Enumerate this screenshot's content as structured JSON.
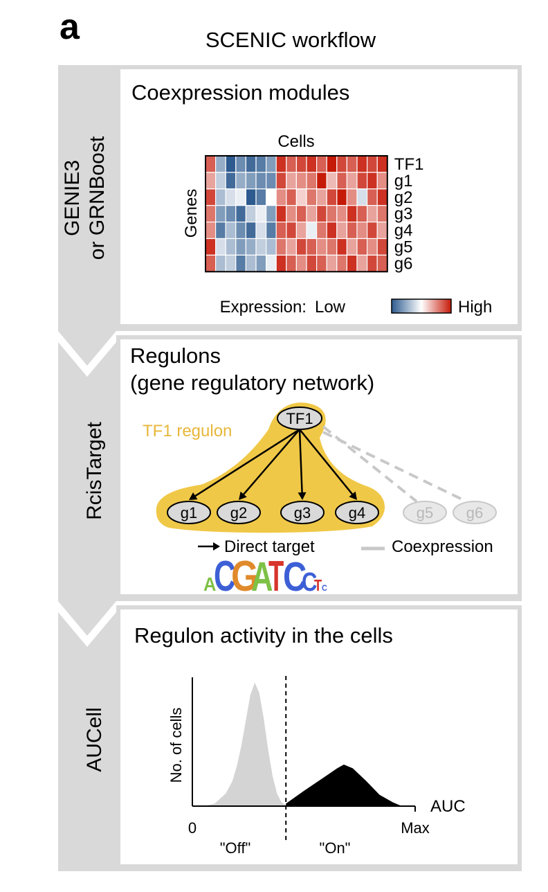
{
  "panel_label": "a",
  "title": "SCENIC workflow",
  "colors": {
    "side_gray": "#d9d9d9",
    "regulon_yellow": "#f0c847",
    "regulon_label": "#e8b73a",
    "off_gray": "#d4d4d4",
    "on_black": "#000000",
    "low_blue": "#2d5b8f",
    "high_red": "#c61a09"
  },
  "sections": [
    {
      "tool_line1": "GENIE3",
      "tool_line2": "or GRNBoost",
      "heading": "Coexpression modules"
    },
    {
      "tool": "RcisTarget",
      "heading_line1": "Regulons",
      "heading_line2": "(gene regulatory network)"
    },
    {
      "tool": "AUCell",
      "heading": "Regulon activity in the cells"
    }
  ],
  "heatmap": {
    "cells_label": "Cells",
    "genes_label": "Genes",
    "rows": [
      "TF1",
      "g1",
      "g2",
      "g3",
      "g4",
      "g5",
      "g6"
    ],
    "legend_label": "Expression:",
    "legend_low": "Low",
    "legend_high": "High",
    "matrix": [
      [
        0.85,
        0.25,
        0.0,
        0.15,
        0.05,
        0.1,
        0.2,
        0.95,
        0.85,
        0.9,
        0.95,
        0.85,
        1.0,
        0.9,
        0.85,
        0.95,
        0.9,
        0.95
      ],
      [
        0.7,
        0.35,
        0.05,
        0.25,
        0.2,
        0.15,
        0.15,
        0.9,
        0.7,
        0.75,
        0.8,
        1.0,
        0.65,
        0.85,
        0.7,
        0.9,
        0.95,
        0.75
      ],
      [
        0.9,
        0.3,
        0.4,
        0.45,
        0.0,
        0.1,
        0.5,
        0.75,
        0.85,
        0.6,
        0.8,
        0.7,
        0.9,
        1.0,
        0.75,
        0.4,
        0.85,
        0.95
      ],
      [
        0.8,
        0.2,
        0.15,
        0.05,
        0.35,
        0.45,
        0.2,
        0.95,
        0.75,
        0.85,
        0.7,
        0.9,
        0.8,
        0.75,
        0.95,
        0.85,
        0.7,
        0.8
      ],
      [
        0.75,
        0.1,
        0.3,
        0.15,
        0.05,
        0.4,
        0.1,
        0.85,
        0.9,
        0.7,
        0.45,
        0.8,
        0.95,
        0.7,
        0.85,
        0.75,
        0.9,
        0.7
      ],
      [
        0.95,
        0.4,
        0.3,
        0.2,
        0.25,
        0.35,
        0.3,
        0.8,
        0.7,
        0.9,
        0.85,
        0.75,
        0.8,
        0.95,
        0.7,
        0.85,
        0.75,
        0.9
      ],
      [
        0.85,
        0.3,
        0.35,
        0.1,
        0.3,
        0.2,
        0.45,
        0.95,
        0.85,
        0.75,
        0.9,
        0.85,
        0.7,
        0.8,
        0.95,
        0.7,
        0.9,
        0.85
      ]
    ]
  },
  "network": {
    "regulon_label": "TF1 regulon",
    "tf": "TF1",
    "targets": [
      "g1",
      "g2",
      "g3",
      "g4"
    ],
    "coexpressed": [
      "g5",
      "g6"
    ],
    "legend_direct": "Direct target",
    "legend_coexpression": "Coexpression",
    "motif": [
      {
        "letter": "A",
        "color": "#7ec147",
        "height": 0.45
      },
      {
        "letter": "C",
        "color": "#3d5fd6",
        "height": 1.0
      },
      {
        "letter": "G",
        "color": "#e08a2b",
        "height": 1.0
      },
      {
        "letter": "A",
        "color": "#7ec147",
        "height": 0.95
      },
      {
        "letter": "T",
        "color": "#d7342b",
        "height": 1.0
      },
      {
        "letter": "C",
        "color": "#3d5fd6",
        "height": 0.95
      },
      {
        "letter": "C",
        "color": "#3d5fd6",
        "height": 0.62
      },
      {
        "letter": "T",
        "color": "#d7342b",
        "height": 0.38
      },
      {
        "letter": "C",
        "color": "#3d5fd6",
        "height": 0.2
      }
    ]
  },
  "chart_data": {
    "type": "area",
    "xlabel": "AUC",
    "ylabel": "No. of cells",
    "x_ticks": [
      "0",
      "Max"
    ],
    "xlim": [
      0,
      1
    ],
    "ylim": [
      0,
      1
    ],
    "threshold": 0.42,
    "threshold_labels": [
      "\"Off\"",
      "\"On\""
    ],
    "series": [
      {
        "color": "#d4d4d4",
        "x": [
          0.0,
          0.05,
          0.1,
          0.15,
          0.18,
          0.2,
          0.22,
          0.24,
          0.26,
          0.28,
          0.3,
          0.32,
          0.34,
          0.36,
          0.38,
          0.4,
          0.42
        ],
        "y": [
          0.0,
          0.0,
          0.02,
          0.1,
          0.2,
          0.32,
          0.48,
          0.68,
          0.88,
          0.98,
          0.9,
          0.7,
          0.45,
          0.24,
          0.1,
          0.03,
          0.01
        ]
      },
      {
        "color": "#000000",
        "x": [
          0.42,
          0.5,
          0.6,
          0.65,
          0.68,
          0.72,
          0.78,
          0.84,
          0.9,
          0.94,
          0.97
        ],
        "y": [
          0.02,
          0.12,
          0.24,
          0.3,
          0.33,
          0.3,
          0.2,
          0.09,
          0.03,
          0.0,
          0.0
        ]
      }
    ]
  }
}
